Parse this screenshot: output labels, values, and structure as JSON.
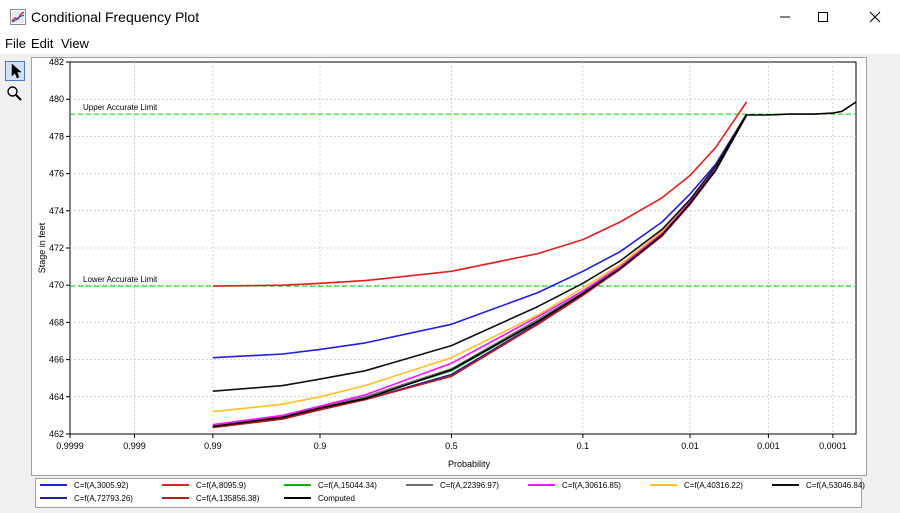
{
  "window": {
    "title": "Conditional Frequency Plot"
  },
  "menu": {
    "items": [
      "File",
      "Edit",
      "View"
    ]
  },
  "tools": {
    "pointer": "pointer-arrow-icon",
    "zoom": "magnifier-icon"
  },
  "chart_data": {
    "type": "line",
    "title": "",
    "xlabel": "Probability",
    "ylabel": "Stage in feet",
    "x_scale": "normal-probability",
    "x_direction": "decreasing",
    "xlim": [
      0.9999,
      4e-05
    ],
    "ylim": [
      462,
      482
    ],
    "x_ticks": [
      0.9999,
      0.999,
      0.99,
      0.9,
      0.5,
      0.1,
      0.01,
      0.001,
      0.0001
    ],
    "x_tick_labels": [
      "0.9999",
      "0.999",
      "0.99",
      "0.9",
      "0.5",
      "0.1",
      "0.01",
      "0.001",
      "0.0001"
    ],
    "y_ticks": [
      462,
      464,
      466,
      468,
      470,
      472,
      474,
      476,
      478,
      480,
      482
    ],
    "grid": true,
    "legend_position": "bottom",
    "reference_lines": [
      {
        "label": "Upper Accurate Limit",
        "y": 479.2,
        "color": "#00cc00"
      },
      {
        "label": "Lower Accurate Limit",
        "y": 469.95,
        "color": "#00cc00"
      }
    ],
    "series": [
      {
        "name": "C=f(A,3005.92)",
        "color": "#1e1ee6",
        "points": [
          [
            0.99,
            466.1
          ],
          [
            0.95,
            466.3
          ],
          [
            0.9,
            466.55
          ],
          [
            0.8,
            466.9
          ],
          [
            0.5,
            467.9
          ],
          [
            0.2,
            469.6
          ],
          [
            0.1,
            470.75
          ],
          [
            0.05,
            471.8
          ],
          [
            0.02,
            473.4
          ],
          [
            0.01,
            474.9
          ],
          [
            0.005,
            476.5
          ],
          [
            0.002,
            479.2
          ]
        ]
      },
      {
        "name": "C=f(A,8095.9)",
        "color": "#e61e1e",
        "points": [
          [
            0.99,
            469.95
          ],
          [
            0.95,
            470.0
          ],
          [
            0.9,
            470.1
          ],
          [
            0.8,
            470.25
          ],
          [
            0.5,
            470.75
          ],
          [
            0.2,
            471.7
          ],
          [
            0.1,
            472.45
          ],
          [
            0.05,
            473.4
          ],
          [
            0.02,
            474.7
          ],
          [
            0.01,
            475.9
          ],
          [
            0.005,
            477.4
          ],
          [
            0.002,
            479.85
          ]
        ]
      },
      {
        "name": "C=f(A,15044.34)",
        "color": "#10b010",
        "points": [
          [
            0.99,
            462.4
          ],
          [
            0.95,
            462.9
          ],
          [
            0.9,
            463.4
          ],
          [
            0.8,
            463.95
          ],
          [
            0.5,
            465.4
          ],
          [
            0.2,
            468.05
          ],
          [
            0.1,
            469.55
          ],
          [
            0.05,
            470.9
          ],
          [
            0.02,
            472.7
          ],
          [
            0.01,
            474.4
          ],
          [
            0.005,
            476.2
          ],
          [
            0.002,
            479.15
          ]
        ]
      },
      {
        "name": "C=f(A,22396.97)",
        "color": "#707070",
        "points": [
          [
            0.99,
            462.45
          ],
          [
            0.95,
            462.95
          ],
          [
            0.9,
            463.45
          ],
          [
            0.8,
            464.0
          ],
          [
            0.5,
            465.5
          ],
          [
            0.2,
            468.15
          ],
          [
            0.1,
            469.6
          ],
          [
            0.05,
            470.95
          ],
          [
            0.02,
            472.75
          ],
          [
            0.01,
            474.45
          ],
          [
            0.005,
            476.25
          ],
          [
            0.002,
            479.15
          ]
        ]
      },
      {
        "name": "C=f(A,30616.85)",
        "color": "#ff10ff",
        "points": [
          [
            0.99,
            462.5
          ],
          [
            0.95,
            463.0
          ],
          [
            0.9,
            463.5
          ],
          [
            0.8,
            464.1
          ],
          [
            0.5,
            465.8
          ],
          [
            0.2,
            468.3
          ],
          [
            0.1,
            469.7
          ],
          [
            0.05,
            471.0
          ],
          [
            0.02,
            472.8
          ],
          [
            0.01,
            474.5
          ],
          [
            0.005,
            476.3
          ],
          [
            0.002,
            479.2
          ]
        ]
      },
      {
        "name": "C=f(A,40316.22)",
        "color": "#ffc020",
        "points": [
          [
            0.99,
            463.2
          ],
          [
            0.95,
            463.6
          ],
          [
            0.9,
            464.0
          ],
          [
            0.8,
            464.6
          ],
          [
            0.5,
            466.1
          ],
          [
            0.2,
            468.4
          ],
          [
            0.1,
            469.85
          ],
          [
            0.05,
            471.1
          ],
          [
            0.02,
            472.9
          ],
          [
            0.01,
            474.6
          ],
          [
            0.005,
            476.4
          ],
          [
            0.002,
            479.2
          ]
        ]
      },
      {
        "name": "C=f(A,53046.84)",
        "color": "#101010",
        "points": [
          [
            0.99,
            464.3
          ],
          [
            0.95,
            464.6
          ],
          [
            0.9,
            464.95
          ],
          [
            0.8,
            465.4
          ],
          [
            0.5,
            466.75
          ],
          [
            0.2,
            468.85
          ],
          [
            0.1,
            470.1
          ],
          [
            0.05,
            471.3
          ],
          [
            0.02,
            473.0
          ],
          [
            0.01,
            474.6
          ],
          [
            0.005,
            476.4
          ],
          [
            0.002,
            479.2
          ]
        ]
      },
      {
        "name": "C=f(A,72793.26)",
        "color": "#202090",
        "points": [
          [
            0.99,
            462.35
          ],
          [
            0.95,
            462.85
          ],
          [
            0.9,
            463.35
          ],
          [
            0.8,
            463.85
          ],
          [
            0.5,
            465.2
          ],
          [
            0.2,
            467.95
          ],
          [
            0.1,
            469.5
          ],
          [
            0.05,
            470.85
          ],
          [
            0.02,
            472.65
          ],
          [
            0.01,
            474.35
          ],
          [
            0.005,
            476.15
          ],
          [
            0.002,
            479.15
          ]
        ]
      },
      {
        "name": "C=f(A,135856.38)",
        "color": "#c01818",
        "points": [
          [
            0.99,
            462.35
          ],
          [
            0.95,
            462.8
          ],
          [
            0.9,
            463.3
          ],
          [
            0.8,
            463.85
          ],
          [
            0.5,
            465.1
          ],
          [
            0.2,
            467.9
          ],
          [
            0.1,
            469.45
          ],
          [
            0.05,
            470.85
          ],
          [
            0.02,
            472.65
          ],
          [
            0.01,
            474.35
          ],
          [
            0.005,
            476.2
          ],
          [
            0.002,
            479.15
          ]
        ]
      },
      {
        "name": "Computed",
        "color": "#000000",
        "points": [
          [
            0.99,
            462.4
          ],
          [
            0.95,
            462.9
          ],
          [
            0.9,
            463.4
          ],
          [
            0.8,
            463.9
          ],
          [
            0.5,
            465.45
          ],
          [
            0.2,
            468.05
          ],
          [
            0.1,
            469.55
          ],
          [
            0.05,
            470.9
          ],
          [
            0.02,
            472.7
          ],
          [
            0.01,
            474.4
          ],
          [
            0.005,
            476.2
          ],
          [
            0.002,
            479.15
          ],
          [
            0.001,
            479.15
          ],
          [
            0.0005,
            479.2
          ],
          [
            0.0002,
            479.2
          ],
          [
            0.0001,
            479.25
          ],
          [
            7e-05,
            479.35
          ],
          [
            4e-05,
            479.85
          ]
        ]
      }
    ]
  }
}
